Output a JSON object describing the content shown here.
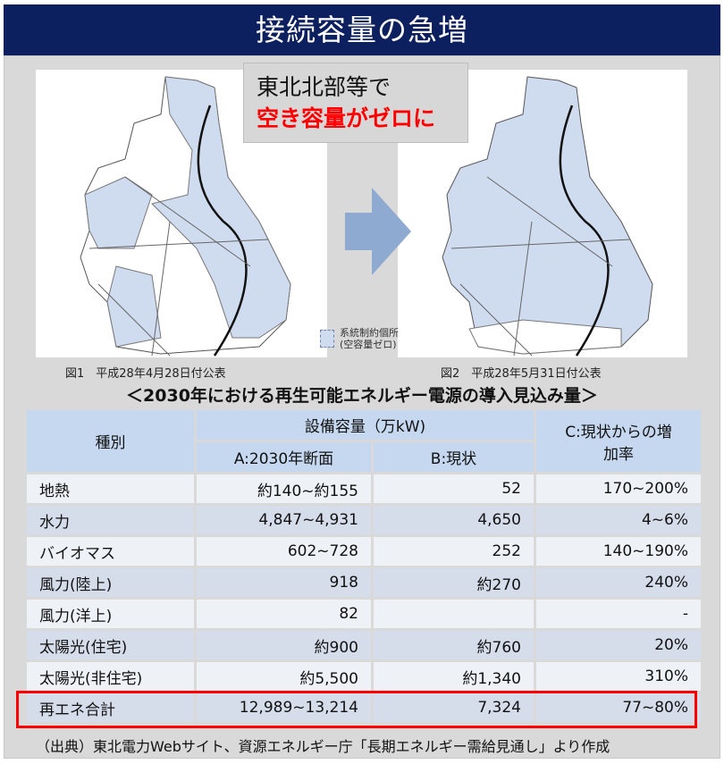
{
  "title": "接続容量の急増",
  "callout": {
    "line1": "東北北部等で",
    "line2": "空き容量がゼロに"
  },
  "legend": {
    "line1": "系統制約個所",
    "line2": "(空容量ゼロ)",
    "color": "#cfdcef"
  },
  "captions": [
    "図1　平成28年4月28日付公表",
    "図2　平成28年5月31日付公表"
  ],
  "subtitle": "＜2030年における再生可能エネルギー電源の導入見込み量＞",
  "table": {
    "headers": {
      "type": "種別",
      "capacity": "設備容量（万kW)",
      "a": "A:2030年断面",
      "b": "B:現状",
      "c": "C:現状からの増加率"
    },
    "rows": [
      {
        "type": "地熱",
        "a": "約140~約155",
        "b": "52",
        "c": "170~200%"
      },
      {
        "type": "水力",
        "a": "4,847~4,931",
        "b": "4,650",
        "c": "4~6%"
      },
      {
        "type": "バイオマス",
        "a": "602~728",
        "b": "252",
        "c": "140~190%"
      },
      {
        "type": "風力(陸上)",
        "a": "918",
        "b": "約270",
        "c": "240%"
      },
      {
        "type": "風力(洋上)",
        "a": "82",
        "b": "",
        "c": "-"
      },
      {
        "type": "太陽光(住宅)",
        "a": "約900",
        "b": "約760",
        "c": "20%"
      },
      {
        "type": "太陽光(非住宅)",
        "a": "約5,500",
        "b": "約1,340",
        "c": "310%"
      },
      {
        "type": "再エネ合計",
        "a": "12,989~13,214",
        "b": "7,324",
        "c": "77~80%"
      }
    ]
  },
  "footnote": "（出典）東北電力Webサイト、資源エネルギー庁「長期エネルギー需給見通し」より作成",
  "colors": {
    "header": "#0c1f5e",
    "highlight": "#ff0000",
    "arrow": "#8eaad0"
  }
}
